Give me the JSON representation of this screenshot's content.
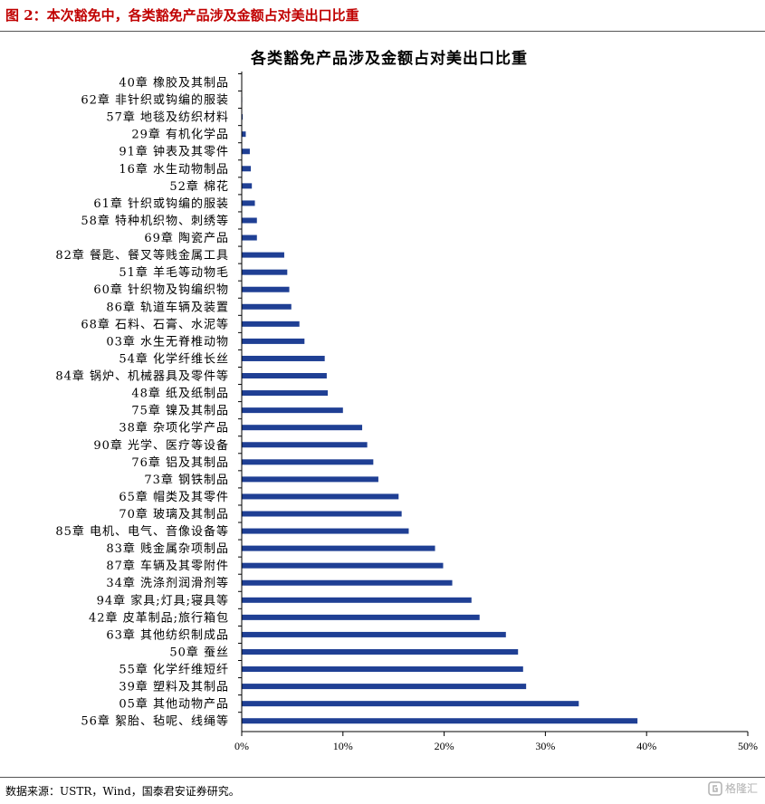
{
  "header": {
    "title": "图 2：本次豁免中，各类豁免产品涉及金额占对美出口比重"
  },
  "footer": {
    "source": "数据来源：USTR，Wind，国泰君安证券研究。",
    "watermark": "格隆汇"
  },
  "colors": {
    "bar": "#1f3f94",
    "header_title": "#c00000"
  },
  "chart_data": {
    "type": "bar",
    "orientation": "horizontal",
    "title": "各类豁免产品涉及金额占对美出口比重",
    "xlabel": "",
    "ylabel": "",
    "xlim": [
      0,
      50
    ],
    "xticks": [
      0,
      10,
      20,
      30,
      40,
      50
    ],
    "xtick_labels": [
      "0%",
      "10%",
      "20%",
      "30%",
      "40%",
      "50%"
    ],
    "grid": false,
    "categories": [
      "40章 橡胶及其制品",
      "62章 非针织或钩编的服装",
      "57章 地毯及纺织材料",
      "29章 有机化学品",
      "91章 钟表及其零件",
      "16章 水生动物制品",
      "52章 棉花",
      "61章 针织或钩编的服装",
      "58章 特种机织物、刺绣等",
      "69章 陶瓷产品",
      "82章 餐匙、餐叉等贱金属工具",
      "51章 羊毛等动物毛",
      "60章 针织物及钩编织物",
      "86章 轨道车辆及装置",
      "68章 石料、石膏、水泥等",
      "03章 水生无脊椎动物",
      "54章 化学纤维长丝",
      "84章 锅炉、机械器具及零件等",
      "48章 纸及纸制品",
      "75章 镍及其制品",
      "38章 杂项化学产品",
      "90章 光学、医疗等设备",
      "76章 铝及其制品",
      "73章 钢铁制品",
      "65章 帽类及其零件",
      "70章 玻璃及其制品",
      "85章 电机、电气、音像设备等",
      "83章 贱金属杂项制品",
      "87章 车辆及其零附件",
      "34章 洗涤剂润滑剂等",
      "94章 家具;灯具;寝具等",
      "42章 皮革制品;旅行箱包",
      "63章 其他纺织制成品",
      "50章 蚕丝",
      "55章 化学纤维短纤",
      "39章 塑料及其制品",
      "05章 其他动物产品",
      "56章 絮胎、毡呢、线绳等"
    ],
    "values": [
      0.02,
      0.05,
      0.1,
      0.4,
      0.8,
      0.9,
      1.0,
      1.3,
      1.5,
      1.5,
      4.2,
      4.5,
      4.7,
      4.9,
      5.7,
      6.2,
      8.2,
      8.4,
      8.5,
      10.0,
      11.9,
      12.4,
      13.0,
      13.5,
      15.5,
      15.8,
      16.5,
      19.1,
      19.9,
      20.8,
      22.7,
      23.5,
      26.1,
      27.3,
      27.8,
      28.1,
      33.3,
      39.1
    ]
  }
}
